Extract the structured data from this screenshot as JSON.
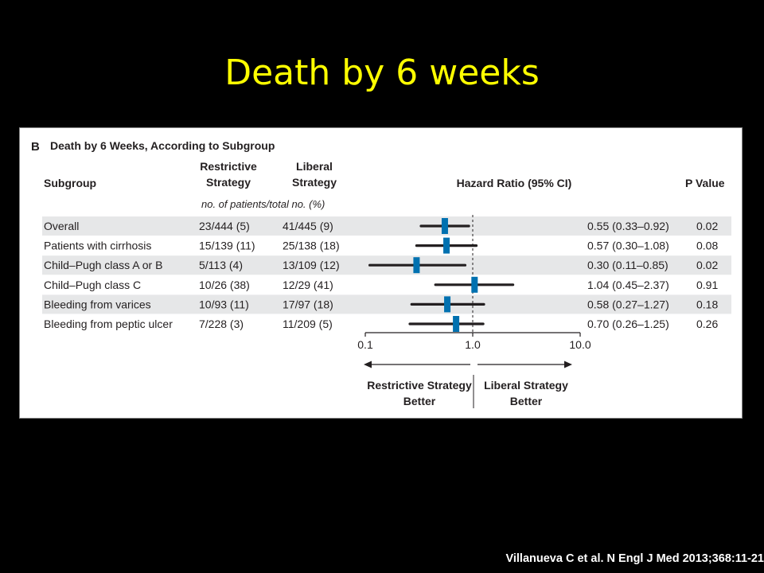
{
  "slide": {
    "title": "Death by 6 weeks",
    "citation": "Villanueva C et al. N Engl J Med 2013;368:11-21"
  },
  "colors": {
    "background": "#000000",
    "title": "#ffff00",
    "panel": "#ffffff",
    "row_stripe": "#e6e7e8",
    "marker": "#0071b0",
    "ci_line": "#231f20"
  },
  "figure": {
    "panel_letter": "B",
    "heading": "Death by 6 Weeks, According to Subgroup",
    "columns": {
      "subgroup": "Subgroup",
      "restrictive_line1": "Restrictive",
      "restrictive_line2": "Strategy",
      "liberal_line1": "Liberal",
      "liberal_line2": "Strategy",
      "hazard_ratio": "Hazard Ratio (95% CI)",
      "p_value": "P Value",
      "units": "no. of patients/total no. (%)"
    },
    "direction": {
      "left_line1": "Restrictive Strategy",
      "left_line2": "Better",
      "right_line1": "Liberal Strategy",
      "right_line2": "Better"
    }
  },
  "chart_data": {
    "type": "forest",
    "x_scale": "log",
    "xlim": [
      0.1,
      10.0
    ],
    "reference_line": 1.0,
    "x_ticks": [
      "0.1",
      "1.0",
      "10.0"
    ],
    "rows": [
      {
        "subgroup": "Overall",
        "restrictive": "23/444 (5)",
        "liberal": "41/445 (9)",
        "hr": 0.55,
        "ci_low": 0.33,
        "ci_high": 0.92,
        "hr_text": "0.55 (0.33–0.92)",
        "p": "0.02"
      },
      {
        "subgroup": "Patients with cirrhosis",
        "restrictive": "15/139 (11)",
        "liberal": "25/138 (18)",
        "hr": 0.57,
        "ci_low": 0.3,
        "ci_high": 1.08,
        "hr_text": "0.57 (0.30–1.08)",
        "p": "0.08"
      },
      {
        "subgroup": "Child–Pugh class A or B",
        "restrictive": "5/113 (4)",
        "liberal": "13/109 (12)",
        "hr": 0.3,
        "ci_low": 0.11,
        "ci_high": 0.85,
        "hr_text": "0.30 (0.11–0.85)",
        "p": "0.02"
      },
      {
        "subgroup": "Child–Pugh class C",
        "restrictive": "10/26 (38)",
        "liberal": "12/29 (41)",
        "hr": 1.04,
        "ci_low": 0.45,
        "ci_high": 2.37,
        "hr_text": "1.04 (0.45–2.37)",
        "p": "0.91"
      },
      {
        "subgroup": "Bleeding from varices",
        "restrictive": "10/93 (11)",
        "liberal": "17/97 (18)",
        "hr": 0.58,
        "ci_low": 0.27,
        "ci_high": 1.27,
        "hr_text": "0.58 (0.27–1.27)",
        "p": "0.18"
      },
      {
        "subgroup": "Bleeding from peptic ulcer",
        "restrictive": "7/228 (3)",
        "liberal": "11/209 (5)",
        "hr": 0.7,
        "ci_low": 0.26,
        "ci_high": 1.25,
        "hr_text": "0.70 (0.26–1.25)",
        "p": "0.26"
      }
    ]
  }
}
